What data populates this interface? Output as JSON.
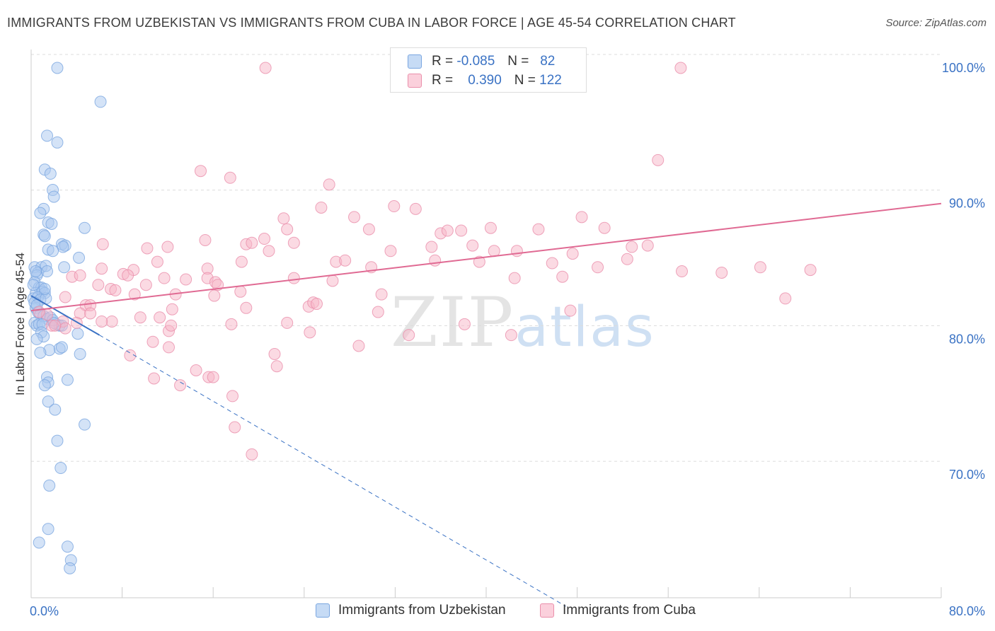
{
  "title": "IMMIGRANTS FROM UZBEKISTAN VS IMMIGRANTS FROM CUBA IN LABOR FORCE | AGE 45-54 CORRELATION CHART",
  "source": "Source: ZipAtlas.com",
  "watermark": {
    "zip": "ZIP",
    "atlas": "atlas"
  },
  "stats": [
    {
      "r_label": "R =",
      "r_value": "-0.085",
      "n_label": "N =",
      "n_value": "82",
      "color": "#a9c8f0"
    },
    {
      "r_label": "R =",
      "r_value": "0.390",
      "n_label": "N =",
      "n_value": "122",
      "color": "#f7b6c8"
    }
  ],
  "chart_data": {
    "type": "scatter",
    "xlabel": "",
    "ylabel": "In Labor Force | Age 45-54",
    "xlim": [
      0,
      80
    ],
    "ylim": [
      60,
      102
    ],
    "x_tick_labels": [
      "0.0%",
      "80.0%"
    ],
    "y_ticks": [
      70,
      80,
      90,
      100
    ],
    "y_tick_labels": [
      "70.0%",
      "80.0%",
      "90.0%",
      "100.0%"
    ],
    "grid": true,
    "legend_position": "bottom",
    "series": [
      {
        "name": "Immigrants from Uzbekistan",
        "color": "#3a72c4",
        "fill": "#a9c8f0",
        "trend": {
          "x0": 0,
          "y0": 83.2,
          "x1": 6,
          "y1": 80.3,
          "dash_x1": 47,
          "dash_y1": 60.3
        },
        "points": [
          [
            2.3,
            100.0
          ],
          [
            6.1,
            97.5
          ],
          [
            1.4,
            95.0
          ],
          [
            2.3,
            94.5
          ],
          [
            1.2,
            92.5
          ],
          [
            1.7,
            92.2
          ],
          [
            1.9,
            91.0
          ],
          [
            2.0,
            90.5
          ],
          [
            1.1,
            89.6
          ],
          [
            0.8,
            89.3
          ],
          [
            1.5,
            88.6
          ],
          [
            1.8,
            88.5
          ],
          [
            4.7,
            88.2
          ],
          [
            1.1,
            87.7
          ],
          [
            1.2,
            87.6
          ],
          [
            2.7,
            87.0
          ],
          [
            3.0,
            86.9
          ],
          [
            1.5,
            86.6
          ],
          [
            2.8,
            86.8
          ],
          [
            1.9,
            86.5
          ],
          [
            4.2,
            86.0
          ],
          [
            0.3,
            85.3
          ],
          [
            0.9,
            85.3
          ],
          [
            1.3,
            85.4
          ],
          [
            2.9,
            85.3
          ],
          [
            0.6,
            84.9
          ],
          [
            1.4,
            85.0
          ],
          [
            0.5,
            84.7
          ],
          [
            0.3,
            84.2
          ],
          [
            0.7,
            83.8
          ],
          [
            0.9,
            83.8
          ],
          [
            0.4,
            83.4
          ],
          [
            1.0,
            83.5
          ],
          [
            1.2,
            83.4
          ],
          [
            0.2,
            83.0
          ],
          [
            0.6,
            83.1
          ],
          [
            0.8,
            82.9
          ],
          [
            1.3,
            83.0
          ],
          [
            0.4,
            82.3
          ],
          [
            0.6,
            82.0
          ],
          [
            0.8,
            81.8
          ],
          [
            1.1,
            81.7
          ],
          [
            1.4,
            81.5
          ],
          [
            1.7,
            81.6
          ],
          [
            0.3,
            81.2
          ],
          [
            0.5,
            81.0
          ],
          [
            0.7,
            81.1
          ],
          [
            1.0,
            81.1
          ],
          [
            2.2,
            81.1
          ],
          [
            2.5,
            81.0
          ],
          [
            2.7,
            81.0
          ],
          [
            0.9,
            80.5
          ],
          [
            1.1,
            80.2
          ],
          [
            4.1,
            80.4
          ],
          [
            0.5,
            80.0
          ],
          [
            2.5,
            79.3
          ],
          [
            2.7,
            79.4
          ],
          [
            1.6,
            79.2
          ],
          [
            0.8,
            79.0
          ],
          [
            4.3,
            78.9
          ],
          [
            1.4,
            77.2
          ],
          [
            1.5,
            76.8
          ],
          [
            1.2,
            76.6
          ],
          [
            3.2,
            77.0
          ],
          [
            1.5,
            75.4
          ],
          [
            2.1,
            74.8
          ],
          [
            4.7,
            73.7
          ],
          [
            2.3,
            72.5
          ],
          [
            2.6,
            70.5
          ],
          [
            1.6,
            69.2
          ],
          [
            1.5,
            66.0
          ],
          [
            0.7,
            65.0
          ],
          [
            3.2,
            64.7
          ],
          [
            3.5,
            63.7
          ],
          [
            3.4,
            63.1
          ],
          [
            0.3,
            82.7
          ],
          [
            0.5,
            82.5
          ],
          [
            1.9,
            81.4
          ],
          [
            0.2,
            84.0
          ],
          [
            0.4,
            85.0
          ],
          [
            2.0,
            81.2
          ],
          [
            1.2,
            83.7
          ]
        ]
      },
      {
        "name": "Immigrants from Cuba",
        "color": "#e06a93",
        "fill": "#f7b6c8",
        "trend": {
          "x0": 0,
          "y0": 82.1,
          "x1": 80,
          "y1": 90.0
        },
        "points": [
          [
            20.6,
            100.0
          ],
          [
            57.1,
            100.0
          ],
          [
            55.1,
            93.2
          ],
          [
            14.9,
            92.4
          ],
          [
            17.5,
            91.9
          ],
          [
            26.2,
            91.4
          ],
          [
            25.5,
            89.7
          ],
          [
            31.9,
            89.8
          ],
          [
            33.8,
            89.6
          ],
          [
            22.2,
            88.9
          ],
          [
            28.4,
            89.0
          ],
          [
            22.5,
            88.1
          ],
          [
            29.7,
            88.1
          ],
          [
            36.0,
            87.8
          ],
          [
            36.6,
            88.0
          ],
          [
            37.8,
            88.0
          ],
          [
            40.4,
            88.2
          ],
          [
            44.6,
            88.1
          ],
          [
            48.4,
            89.0
          ],
          [
            50.4,
            88.2
          ],
          [
            15.3,
            87.3
          ],
          [
            20.5,
            87.4
          ],
          [
            18.9,
            87.0
          ],
          [
            19.4,
            87.1
          ],
          [
            23.1,
            87.1
          ],
          [
            6.3,
            87.0
          ],
          [
            10.2,
            86.7
          ],
          [
            12.0,
            86.8
          ],
          [
            20.9,
            86.5
          ],
          [
            31.6,
            86.5
          ],
          [
            35.2,
            86.8
          ],
          [
            38.8,
            86.9
          ],
          [
            40.7,
            86.5
          ],
          [
            42.7,
            86.5
          ],
          [
            47.6,
            86.3
          ],
          [
            52.8,
            86.8
          ],
          [
            54.2,
            86.9
          ],
          [
            11.1,
            85.7
          ],
          [
            18.5,
            85.7
          ],
          [
            26.8,
            85.7
          ],
          [
            27.6,
            85.8
          ],
          [
            35.5,
            85.8
          ],
          [
            39.4,
            85.7
          ],
          [
            45.8,
            85.6
          ],
          [
            49.8,
            85.3
          ],
          [
            52.4,
            85.9
          ],
          [
            64.1,
            85.3
          ],
          [
            6.2,
            85.2
          ],
          [
            9.0,
            85.1
          ],
          [
            15.5,
            85.2
          ],
          [
            29.9,
            85.3
          ],
          [
            57.2,
            85.0
          ],
          [
            60.7,
            84.9
          ],
          [
            68.5,
            85.1
          ],
          [
            8.1,
            84.8
          ],
          [
            8.5,
            84.7
          ],
          [
            3.6,
            84.6
          ],
          [
            4.3,
            84.7
          ],
          [
            11.7,
            84.5
          ],
          [
            13.6,
            84.4
          ],
          [
            15.5,
            84.5
          ],
          [
            23.1,
            84.5
          ],
          [
            26.5,
            84.3
          ],
          [
            42.5,
            84.5
          ],
          [
            46.7,
            84.6
          ],
          [
            16.2,
            84.2
          ],
          [
            16.4,
            84.0
          ],
          [
            10.1,
            84.0
          ],
          [
            5.9,
            84.0
          ],
          [
            7.0,
            83.7
          ],
          [
            7.4,
            83.6
          ],
          [
            9.1,
            83.3
          ],
          [
            12.7,
            83.3
          ],
          [
            16.1,
            83.2
          ],
          [
            18.4,
            83.5
          ],
          [
            30.8,
            83.3
          ],
          [
            66.3,
            83.0
          ],
          [
            3.0,
            83.1
          ],
          [
            4.8,
            82.5
          ],
          [
            5.2,
            82.5
          ],
          [
            12.4,
            82.2
          ],
          [
            18.9,
            82.3
          ],
          [
            24.4,
            82.4
          ],
          [
            24.8,
            82.7
          ],
          [
            30.5,
            82.0
          ],
          [
            47.4,
            82.1
          ],
          [
            4.3,
            81.9
          ],
          [
            5.2,
            81.9
          ],
          [
            9.6,
            81.6
          ],
          [
            7.1,
            81.3
          ],
          [
            11.3,
            81.6
          ],
          [
            17.6,
            81.1
          ],
          [
            22.5,
            81.2
          ],
          [
            38.1,
            81.1
          ],
          [
            2.8,
            81.3
          ],
          [
            1.8,
            81.0
          ],
          [
            4.0,
            81.2
          ],
          [
            12.1,
            80.6
          ],
          [
            24.5,
            80.5
          ],
          [
            33.2,
            80.3
          ],
          [
            42.2,
            80.3
          ],
          [
            3.0,
            80.8
          ],
          [
            10.7,
            79.8
          ],
          [
            12.1,
            79.4
          ],
          [
            28.8,
            79.5
          ],
          [
            8.7,
            78.8
          ],
          [
            21.4,
            78.9
          ],
          [
            21.6,
            78.0
          ],
          [
            15.6,
            77.2
          ],
          [
            14.5,
            77.7
          ],
          [
            16.0,
            77.2
          ],
          [
            10.8,
            77.1
          ],
          [
            13.1,
            76.6
          ],
          [
            17.7,
            75.8
          ],
          [
            17.9,
            73.5
          ],
          [
            19.4,
            71.5
          ],
          [
            1.4,
            81.8
          ],
          [
            2.1,
            81.0
          ],
          [
            0.7,
            82.0
          ],
          [
            6.2,
            81.3
          ],
          [
            12.3,
            81.0
          ],
          [
            25.1,
            82.6
          ]
        ]
      }
    ]
  }
}
